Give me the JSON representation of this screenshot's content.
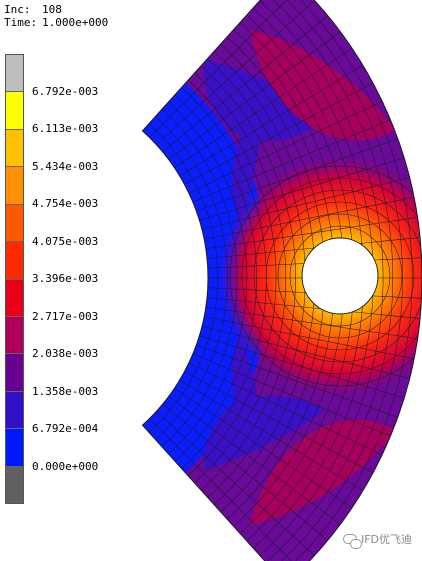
{
  "header": {
    "inc_label": "Inc:",
    "inc_value": "108",
    "time_label": "Time:",
    "time_value": "1.000e+000"
  },
  "legend": {
    "colors": [
      "#bdbdbd",
      "#ffff00",
      "#ffc000",
      "#ff9000",
      "#ff5a00",
      "#ff2a00",
      "#e8001a",
      "#b0005a",
      "#6a0090",
      "#3210c8",
      "#0018ff",
      "#606060"
    ],
    "labels": [
      "6.792e-003",
      "6.113e-003",
      "5.434e-003",
      "4.754e-003",
      "4.075e-003",
      "3.396e-003",
      "2.717e-003",
      "2.038e-003",
      "1.358e-003",
      "6.792e-004",
      "0.000e+000"
    ]
  },
  "mesh_colors": {
    "blue": "#0a1eff",
    "indigo": "#3a10c8",
    "purple": "#6a0a98",
    "crimson": "#a8005e",
    "red": "#ee1418",
    "orange": "#ff6a00",
    "yellow": "#ffe000",
    "edge": "#1a1a2a"
  },
  "watermark": {
    "text": "IFD优飞迪"
  }
}
